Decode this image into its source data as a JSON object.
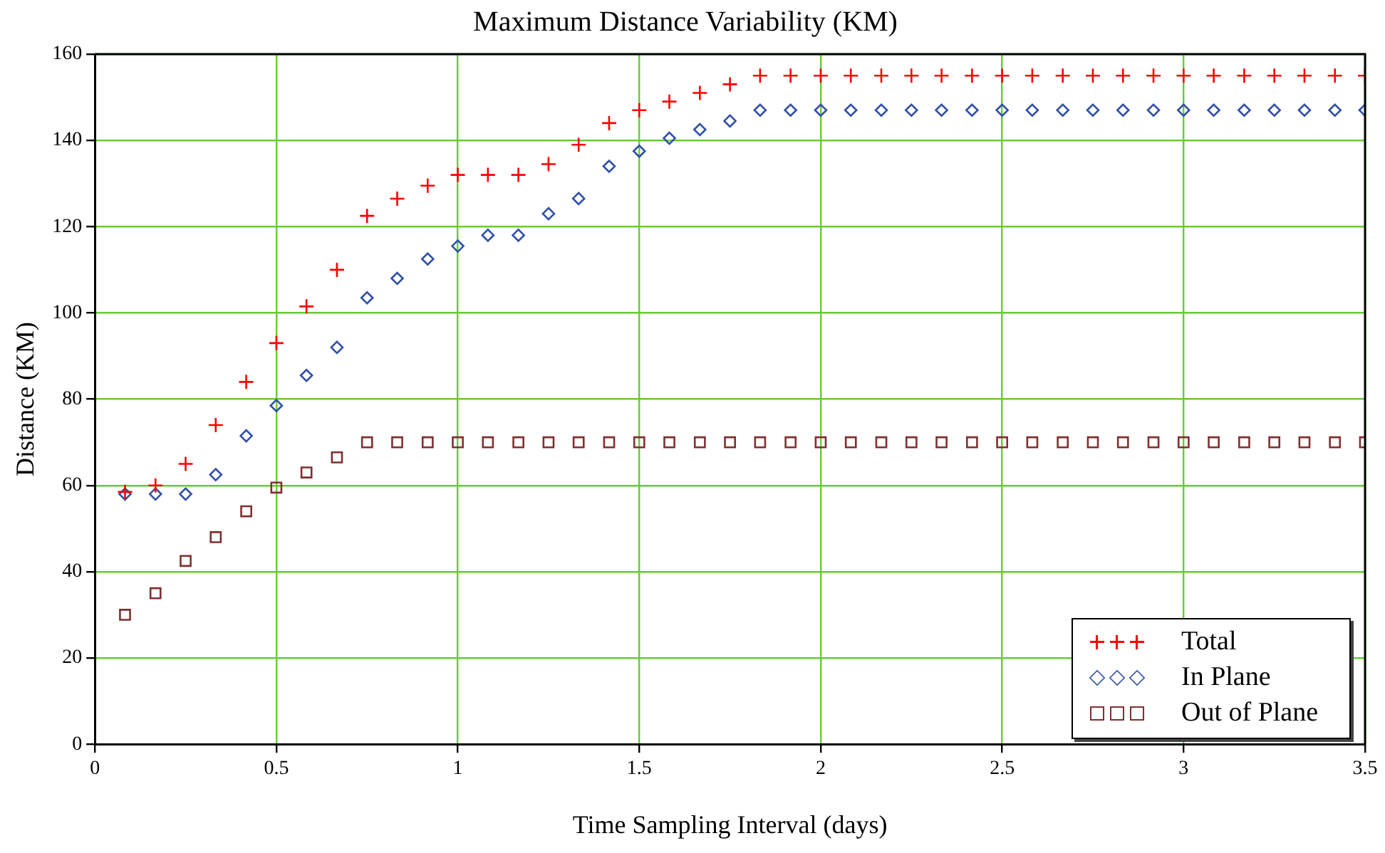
{
  "chart_data": {
    "type": "scatter",
    "title": "Maximum Distance Variability (KM)",
    "xlabel": "Time Sampling Interval (days)",
    "ylabel": "Distance (KM)",
    "x": [
      0.083,
      0.167,
      0.25,
      0.333,
      0.417,
      0.5,
      0.583,
      0.667,
      0.75,
      0.833,
      0.917,
      1,
      1.083,
      1.167,
      1.25,
      1.333,
      1.417,
      1.5,
      1.583,
      1.667,
      1.75,
      1.833,
      1.917,
      2,
      2.083,
      2.167,
      2.25,
      2.333,
      2.417,
      2.5,
      2.583,
      2.667,
      2.75,
      2.833,
      2.917,
      3,
      3.083,
      3.167,
      3.25,
      3.333,
      3.417,
      3.5
    ],
    "series": [
      {
        "name": "Total",
        "color": "#ff0000",
        "marker": "cross",
        "values": [
          58.5,
          60,
          65,
          74,
          84,
          93,
          101.5,
          110,
          122.5,
          126.5,
          129.5,
          132,
          132,
          132,
          134.5,
          139,
          144,
          147,
          149,
          151,
          153,
          155,
          155,
          155,
          155,
          155,
          155,
          155,
          155,
          155,
          155,
          155,
          155,
          155,
          155,
          155,
          155,
          155,
          155,
          155,
          155,
          155
        ]
      },
      {
        "name": "In Plane",
        "color": "#3050a8",
        "marker": "diamond",
        "values": [
          58,
          58,
          58,
          62.5,
          71.5,
          78.5,
          85.5,
          92,
          103.5,
          108,
          112.5,
          115.5,
          118,
          118,
          123,
          126.5,
          134,
          137.5,
          140.5,
          142.5,
          144.5,
          147,
          147,
          147,
          147,
          147,
          147,
          147,
          147,
          147,
          147,
          147,
          147,
          147,
          147,
          147,
          147,
          147,
          147,
          147,
          147,
          147
        ]
      },
      {
        "name": "Out of Plane",
        "color": "#7f3030",
        "marker": "square",
        "values": [
          30,
          35,
          42.5,
          48,
          54,
          59.5,
          63,
          66.5,
          70,
          70,
          70,
          70,
          70,
          70,
          70,
          70,
          70,
          70,
          70,
          70,
          70,
          70,
          70,
          70,
          70,
          70,
          70,
          70,
          70,
          70,
          70,
          70,
          70,
          70,
          70,
          70,
          70,
          70,
          70,
          70,
          70,
          70
        ]
      }
    ],
    "xlim": [
      0,
      3.5
    ],
    "xticks": [
      0,
      0.5,
      1,
      1.5,
      2,
      2.5,
      3,
      3.5
    ],
    "ylim": [
      0,
      160
    ],
    "yticks": [
      0,
      20,
      40,
      60,
      80,
      100,
      120,
      140,
      160
    ],
    "grid": true,
    "legend": "bottom right"
  }
}
